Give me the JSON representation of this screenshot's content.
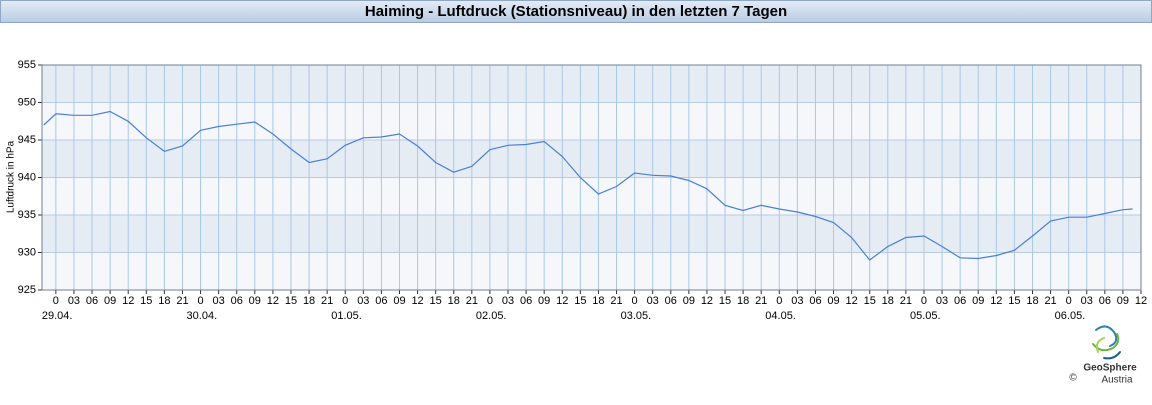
{
  "chart_data": {
    "type": "line",
    "title": "Haiming - Luftdruck (Stationsniveau) in den letzten 7 Tagen",
    "y_label": "Luftdruck in hPa",
    "x": [
      -2,
      0,
      3,
      6,
      9,
      12,
      15,
      18,
      21,
      24,
      27,
      30,
      33,
      36,
      39,
      42,
      45,
      48,
      51,
      54,
      57,
      60,
      63,
      66,
      69,
      72,
      75,
      78,
      81,
      84,
      87,
      90,
      93,
      96,
      99,
      102,
      105,
      108,
      111,
      114,
      117,
      120,
      123,
      126,
      129,
      132,
      135,
      138,
      141,
      144,
      147,
      150,
      153,
      156,
      159,
      162,
      165,
      168,
      171,
      174,
      177,
      178.6
    ],
    "series": [
      {
        "name": "Luftdruck",
        "color": "#4a7fd8",
        "values": [
          947.0,
          948.5,
          948.3,
          948.3,
          948.8,
          947.5,
          945.3,
          943.5,
          944.2,
          946.3,
          946.8,
          947.1,
          947.4,
          945.8,
          943.8,
          942.0,
          942.5,
          944.3,
          945.3,
          945.4,
          945.8,
          944.2,
          942.0,
          940.7,
          941.5,
          943.7,
          944.3,
          944.4,
          944.8,
          942.8,
          940.0,
          937.8,
          938.8,
          940.6,
          940.3,
          940.2,
          939.6,
          938.5,
          936.3,
          935.6,
          936.3,
          935.8,
          935.4,
          934.8,
          934.0,
          932.0,
          929.0,
          930.8,
          932.0,
          932.2,
          930.8,
          929.3,
          929.2,
          929.6,
          930.3,
          932.2,
          934.2,
          934.7,
          934.7,
          935.2,
          935.7,
          935.8
        ]
      }
    ],
    "xlim": [
      -2.3,
      180
    ],
    "ylim": [
      925,
      955
    ],
    "yticks": [
      925,
      930,
      935,
      940,
      945,
      950,
      955
    ],
    "xticks": [
      0,
      {
        "value": 3,
        "label": "03"
      },
      {
        "value": 6,
        "label": "06"
      },
      {
        "value": 9,
        "label": "09"
      },
      12,
      15,
      18,
      21,
      {
        "value": 24,
        "label": "0"
      },
      {
        "value": 27,
        "label": "03"
      },
      {
        "value": 30,
        "label": "06"
      },
      {
        "value": 33,
        "label": "09"
      },
      {
        "value": 36,
        "label": "12"
      },
      {
        "value": 39,
        "label": "15"
      },
      {
        "value": 42,
        "label": "18"
      },
      {
        "value": 45,
        "label": "21"
      },
      {
        "value": 48,
        "label": "0"
      },
      {
        "value": 51,
        "label": "03"
      },
      {
        "value": 54,
        "label": "06"
      },
      {
        "value": 57,
        "label": "09"
      },
      {
        "value": 60,
        "label": "12"
      },
      {
        "value": 63,
        "label": "15"
      },
      {
        "value": 66,
        "label": "18"
      },
      {
        "value": 69,
        "label": "21"
      },
      {
        "value": 72,
        "label": "0"
      },
      {
        "value": 75,
        "label": "03"
      },
      {
        "value": 78,
        "label": "06"
      },
      {
        "value": 81,
        "label": "09"
      },
      {
        "value": 84,
        "label": "12"
      },
      {
        "value": 87,
        "label": "15"
      },
      {
        "value": 90,
        "label": "18"
      },
      {
        "value": 93,
        "label": "21"
      },
      {
        "value": 96,
        "label": "0"
      },
      {
        "value": 99,
        "label": "03"
      },
      {
        "value": 102,
        "label": "06"
      },
      {
        "value": 105,
        "label": "09"
      },
      {
        "value": 108,
        "label": "12"
      },
      {
        "value": 111,
        "label": "15"
      },
      {
        "value": 114,
        "label": "18"
      },
      {
        "value": 117,
        "label": "21"
      },
      {
        "value": 120,
        "label": "0"
      },
      {
        "value": 123,
        "label": "03"
      },
      {
        "value": 126,
        "label": "06"
      },
      {
        "value": 129,
        "label": "09"
      },
      {
        "value": 132,
        "label": "12"
      },
      {
        "value": 135,
        "label": "15"
      },
      {
        "value": 138,
        "label": "18"
      },
      {
        "value": 141,
        "label": "21"
      },
      {
        "value": 144,
        "label": "0"
      },
      {
        "value": 147,
        "label": "03"
      },
      {
        "value": 150,
        "label": "06"
      },
      {
        "value": 153,
        "label": "09"
      },
      {
        "value": 156,
        "label": "12"
      },
      {
        "value": 159,
        "label": "15"
      },
      {
        "value": 162,
        "label": "18"
      },
      {
        "value": 165,
        "label": "21"
      },
      {
        "value": 168,
        "label": "0"
      },
      {
        "value": 171,
        "label": "03"
      },
      {
        "value": 174,
        "label": "06"
      },
      {
        "value": 177,
        "label": "09"
      },
      {
        "value": 180,
        "label": "12"
      }
    ],
    "x_date_ticks": [
      {
        "value": 0,
        "label": "29.04."
      },
      {
        "value": 24,
        "label": "30.04."
      },
      {
        "value": 48,
        "label": "01.05."
      },
      {
        "value": 72,
        "label": "02.05."
      },
      {
        "value": 96,
        "label": "03.05."
      },
      {
        "value": 120,
        "label": "04.05."
      },
      {
        "value": 144,
        "label": "05.05."
      },
      {
        "value": 168,
        "label": "06.05."
      }
    ],
    "grid": true
  },
  "logo": {
    "name": "GeoSphere",
    "sub": "Austria",
    "copyright": "©"
  }
}
